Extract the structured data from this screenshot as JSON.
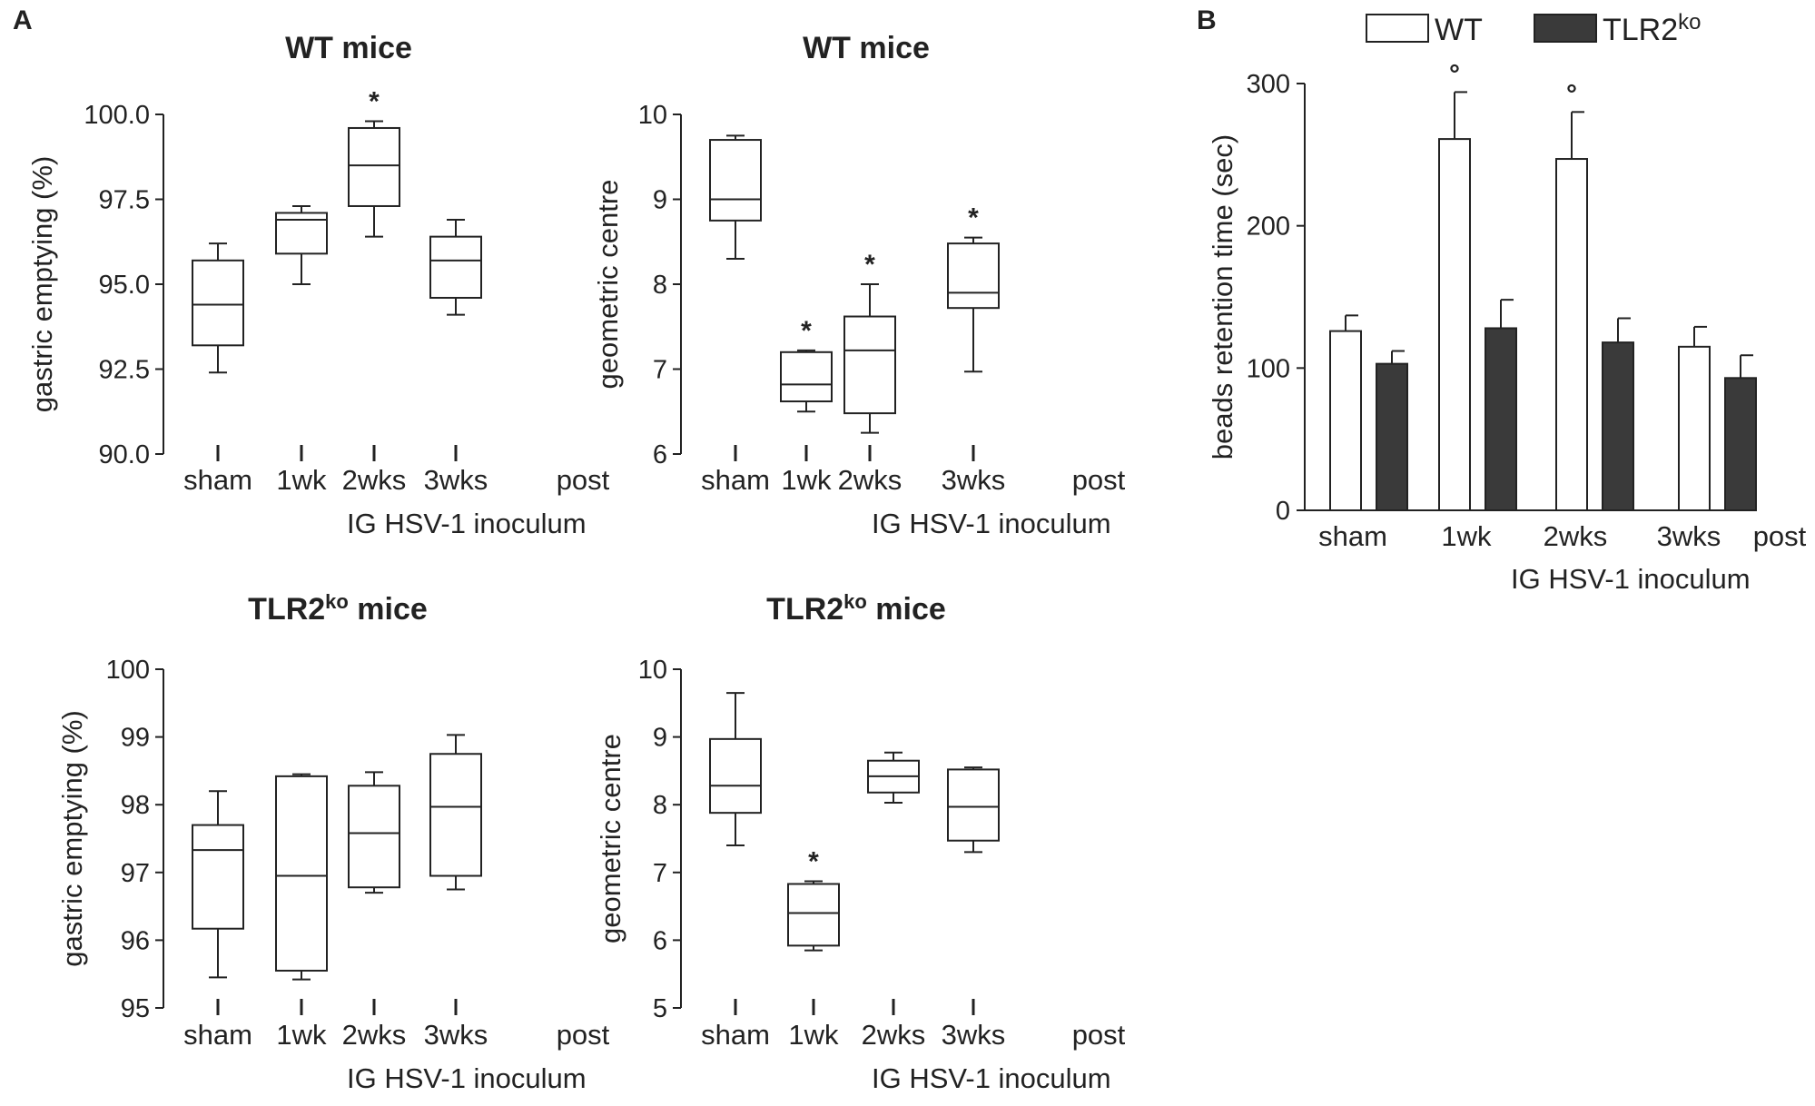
{
  "panel_labels": {
    "a": "A",
    "b": "B"
  },
  "chart_data": [
    {
      "type": "box",
      "panel": "A",
      "title": "WT mice",
      "title_sup": "",
      "ylabel": "gastric emptying (%)",
      "xlabel": "IG HSV-1 inoculum",
      "x_suffix": "post",
      "categories": [
        "sham",
        "1wk",
        "2wks",
        "3wks"
      ],
      "ylim": [
        90.0,
        100.0
      ],
      "yticks": [
        "90.0",
        "92.5",
        "95.0",
        "97.5",
        "100.0"
      ],
      "ytick_values": [
        90.0,
        92.5,
        95.0,
        97.5,
        100.0
      ],
      "boxes": [
        {
          "min": 92.4,
          "q1": 93.2,
          "median": 94.4,
          "q3": 95.7,
          "max": 96.2
        },
        {
          "min": 95.0,
          "q1": 95.9,
          "median": 96.9,
          "q3": 97.1,
          "max": 97.3
        },
        {
          "min": 96.4,
          "q1": 97.3,
          "median": 98.5,
          "q3": 99.6,
          "max": 99.8
        },
        {
          "min": 94.1,
          "q1": 94.6,
          "median": 95.7,
          "q3": 96.4,
          "max": 96.9
        }
      ],
      "markers": [
        "",
        "",
        "*",
        ""
      ]
    },
    {
      "type": "box",
      "panel": "A",
      "title": "WT mice",
      "title_sup": "",
      "ylabel": "geometric centre",
      "xlabel": "IG HSV-1 inoculum",
      "x_suffix": "post",
      "categories": [
        "sham",
        "1wk",
        "2wks",
        "3wks"
      ],
      "ylim": [
        6,
        10
      ],
      "yticks": [
        "6",
        "7",
        "8",
        "9",
        "10"
      ],
      "ytick_values": [
        6,
        7,
        8,
        9,
        10
      ],
      "boxes": [
        {
          "min": 8.3,
          "q1": 8.75,
          "median": 9.0,
          "q3": 9.7,
          "max": 9.75
        },
        {
          "min": 6.5,
          "q1": 6.62,
          "median": 6.82,
          "q3": 7.2,
          "max": 7.22
        },
        {
          "min": 6.25,
          "q1": 6.48,
          "median": 7.22,
          "q3": 7.62,
          "max": 8.0
        },
        {
          "min": 6.97,
          "q1": 7.72,
          "median": 7.9,
          "q3": 8.48,
          "max": 8.55
        }
      ],
      "markers": [
        "",
        "*",
        "*",
        "*"
      ]
    },
    {
      "type": "box",
      "panel": "A",
      "title": "TLR2",
      "title_sup": "ko",
      "title_suffix": "mice",
      "ylabel": "gastric emptying (%)",
      "xlabel": "IG HSV-1 inoculum",
      "x_suffix": "post",
      "categories": [
        "sham",
        "1wk",
        "2wks",
        "3wks"
      ],
      "ylim": [
        95,
        100
      ],
      "yticks": [
        "95",
        "96",
        "97",
        "98",
        "99",
        "100"
      ],
      "ytick_values": [
        95,
        96,
        97,
        98,
        99,
        100
      ],
      "boxes": [
        {
          "min": 95.45,
          "q1": 96.17,
          "median": 97.33,
          "q3": 97.7,
          "max": 98.2
        },
        {
          "min": 95.42,
          "q1": 95.55,
          "median": 96.95,
          "q3": 98.42,
          "max": 98.45
        },
        {
          "min": 96.7,
          "q1": 96.78,
          "median": 97.58,
          "q3": 98.28,
          "max": 98.48
        },
        {
          "min": 96.75,
          "q1": 96.95,
          "median": 97.97,
          "q3": 98.75,
          "max": 99.03
        }
      ],
      "markers": [
        "",
        "",
        "",
        ""
      ]
    },
    {
      "type": "box",
      "panel": "A",
      "title": "TLR2",
      "title_sup": "ko",
      "title_suffix": "mice",
      "ylabel": "geometric centre",
      "xlabel": "IG HSV-1 inoculum",
      "x_suffix": "post",
      "categories": [
        "sham",
        "1wk",
        "2wks",
        "3wks"
      ],
      "ylim": [
        5,
        10
      ],
      "yticks": [
        "5",
        "6",
        "7",
        "8",
        "9",
        "10"
      ],
      "ytick_values": [
        5,
        6,
        7,
        8,
        9,
        10
      ],
      "boxes": [
        {
          "min": 7.4,
          "q1": 7.88,
          "median": 8.28,
          "q3": 8.97,
          "max": 9.65
        },
        {
          "min": 5.85,
          "q1": 5.92,
          "median": 6.4,
          "q3": 6.83,
          "max": 6.87
        },
        {
          "min": 8.03,
          "q1": 8.18,
          "median": 8.42,
          "q3": 8.65,
          "max": 8.77
        },
        {
          "min": 7.3,
          "q1": 7.47,
          "median": 7.97,
          "q3": 8.52,
          "max": 8.55
        }
      ],
      "markers": [
        "",
        "*",
        "",
        ""
      ]
    },
    {
      "type": "bar",
      "panel": "B",
      "title": "",
      "ylabel": "beads retention time (sec)",
      "xlabel": "IG HSV-1 inoculum",
      "x_suffix": "post",
      "categories": [
        "sham",
        "1wk",
        "2wks",
        "3wks"
      ],
      "ylim": [
        0,
        300
      ],
      "yticks": [
        "0",
        "100",
        "200",
        "300"
      ],
      "ytick_values": [
        0,
        100,
        200,
        300
      ],
      "legend": [
        {
          "name": "WT",
          "sup": "",
          "color": "#ffffff"
        },
        {
          "name": "TLR2",
          "sup": "ko",
          "color": "#3a3a3a"
        }
      ],
      "series": [
        {
          "name": "WT",
          "values": [
            126,
            261,
            247,
            115
          ],
          "errors": [
            11,
            33,
            33,
            14
          ],
          "markers": [
            "",
            "°",
            "°",
            ""
          ]
        },
        {
          "name": "TLR2ko",
          "values": [
            103,
            128,
            118,
            93
          ],
          "errors": [
            9,
            20,
            17,
            16
          ],
          "markers": [
            "",
            "",
            "",
            ""
          ]
        }
      ]
    }
  ]
}
